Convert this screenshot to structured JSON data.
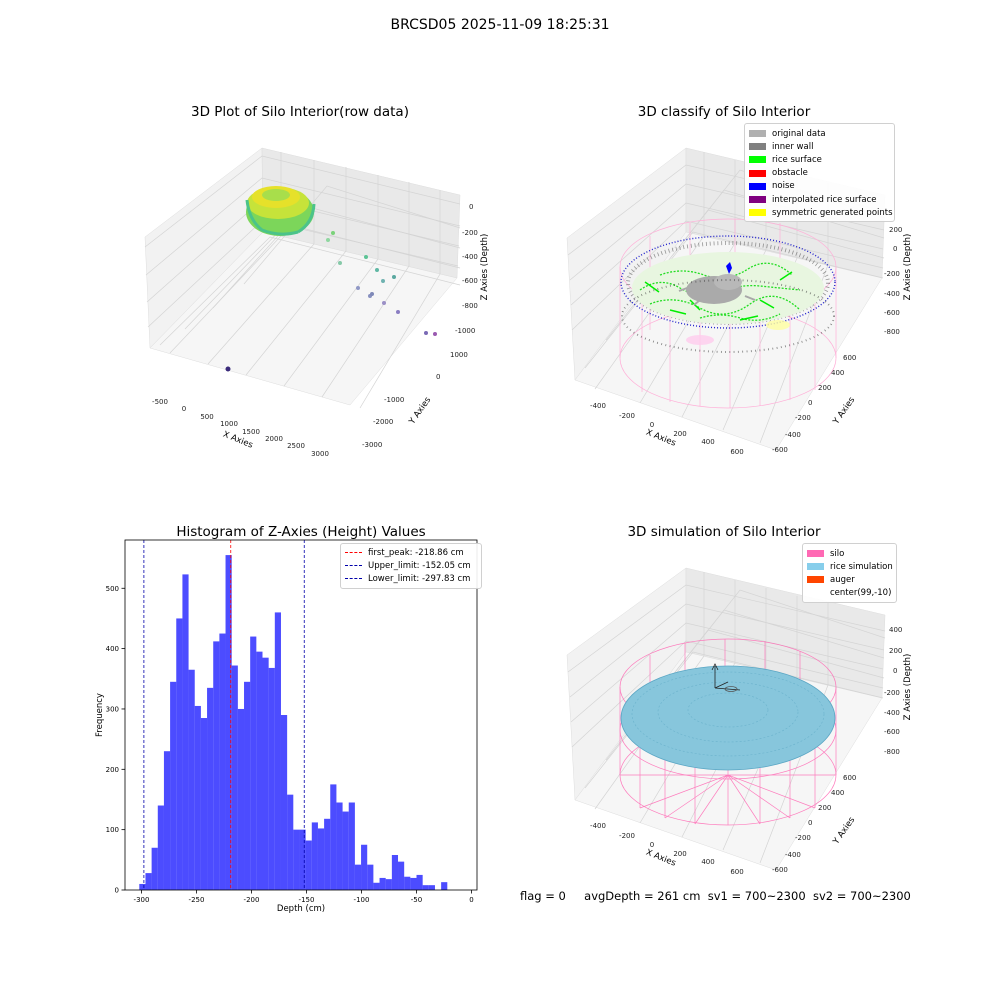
{
  "figure": {
    "title": "BRCSD05 2025-11-09 18:25:31"
  },
  "panels": {
    "raw": {
      "title": "3D Plot of Silo Interior(row data)",
      "xlabel": "X Axies",
      "ylabel": "Y Axies",
      "zlabel": "Z Axies (Depth)",
      "xticks": [
        "-500",
        "0",
        "500",
        "1000",
        "1500",
        "2000",
        "2500",
        "3000"
      ],
      "yticks": [
        "1000",
        "0",
        "-1000",
        "-2000",
        "-3000"
      ],
      "zticks": [
        "0",
        "-200",
        "-400",
        "-600",
        "-800",
        "-1000"
      ]
    },
    "classify": {
      "title": "3D classify of Silo Interior",
      "xlabel": "X Axies",
      "ylabel": "Y Axies",
      "zlabel": "Z Axies (Depth)",
      "xticks": [
        "-400",
        "-200",
        "0",
        "200",
        "400",
        "600"
      ],
      "yticks": [
        "600",
        "400",
        "200",
        "0",
        "-200",
        "-400",
        "-600"
      ],
      "zticks": [
        "200",
        "0",
        "-200",
        "-400",
        "-600",
        "-800"
      ],
      "legend": [
        {
          "label": "original data",
          "color": "#b0b0b0"
        },
        {
          "label": "inner wall",
          "color": "#808080"
        },
        {
          "label": "rice surface",
          "color": "#00ff00"
        },
        {
          "label": "obstacle",
          "color": "#ff0000"
        },
        {
          "label": "noise",
          "color": "#0000ff"
        },
        {
          "label": "interpolated rice surface",
          "color": "#800080"
        },
        {
          "label": "symmetric generated points",
          "color": "#ffff00"
        }
      ]
    },
    "histogram": {
      "title": "Histogram of Z-Axies (Height) Values",
      "xlabel": "Depth (cm)",
      "ylabel": "Frequency",
      "legend": [
        {
          "label": "first_peak: -218.86 cm",
          "color": "#ff0000"
        },
        {
          "label": "Upper_limit: -152.05 cm",
          "color": "#0000aa"
        },
        {
          "label": "Lower_limit: -297.83 cm",
          "color": "#0000aa"
        }
      ]
    },
    "simulation": {
      "title": "3D simulation of Silo Interior",
      "xlabel": "X Axies",
      "ylabel": "Y Axies",
      "zlabel": "Z Axies (Depth)",
      "xticks": [
        "-400",
        "-200",
        "0",
        "200",
        "400",
        "600"
      ],
      "yticks": [
        "600",
        "400",
        "200",
        "0",
        "-200",
        "-400",
        "-600"
      ],
      "zticks": [
        "400",
        "200",
        "0",
        "-200",
        "-400",
        "-600",
        "-800"
      ],
      "legend": [
        {
          "label": "silo",
          "color": "#ff69b4"
        },
        {
          "label": "rice simulation",
          "color": "#87ceeb"
        },
        {
          "label": "auger",
          "color": "#ff4500"
        },
        {
          "label": "center(99,-10)",
          "color": ""
        }
      ]
    }
  },
  "status": {
    "flag": "flag = 0",
    "avg": "avgDepth = 261 cm",
    "sv1": "sv1 = 700~2300",
    "sv2": "sv2 = 700~2300"
  },
  "chart_data": [
    {
      "type": "histogram",
      "title": "Histogram of Z-Axies (Height) Values",
      "xlabel": "Depth (cm)",
      "ylabel": "Frequency",
      "xlim": [
        -315,
        5
      ],
      "ylim": [
        0,
        580
      ],
      "xticks": [
        -300,
        -250,
        -200,
        -150,
        -100,
        -50,
        0
      ],
      "yticks": [
        0,
        100,
        200,
        300,
        400,
        500
      ],
      "bin_start": -302,
      "bin_width": 5.6,
      "counts": [
        10,
        28,
        70,
        140,
        230,
        345,
        450,
        523,
        365,
        305,
        285,
        335,
        412,
        425,
        555,
        372,
        300,
        345,
        420,
        395,
        385,
        368,
        460,
        290,
        158,
        100,
        100,
        82,
        112,
        102,
        118,
        175,
        145,
        130,
        145,
        42,
        75,
        42,
        12,
        20,
        18,
        58,
        47,
        22,
        20,
        25,
        8,
        8,
        0,
        13
      ],
      "bar_color": "#0000ff",
      "vlines": [
        {
          "name": "first_peak",
          "x": -218.86,
          "color": "#ff0000"
        },
        {
          "name": "Upper_limit",
          "x": -152.05,
          "color": "#0000aa"
        },
        {
          "name": "Lower_limit",
          "x": -297.83,
          "color": "#0000aa"
        }
      ],
      "legend_position": "upper right",
      "grid": false
    }
  ]
}
